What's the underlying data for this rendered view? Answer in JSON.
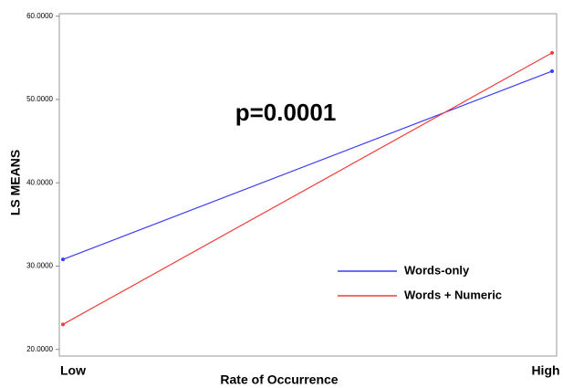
{
  "chart_data": {
    "type": "line",
    "xlabel": "Rate of Occurrence",
    "ylabel": "LS MEANS",
    "annotation": "p=0.0001",
    "categories": [
      "Low",
      "High"
    ],
    "series": [
      {
        "name": "Words-only",
        "color": "#3b3bf5",
        "values": [
          30.8,
          53.4
        ]
      },
      {
        "name": "Words + Numeric",
        "color": "#f03c3c",
        "values": [
          23.0,
          55.6
        ]
      }
    ],
    "ylim": [
      19.2,
      60.3
    ],
    "yticks": [
      {
        "value": 20,
        "label": "20.0000"
      },
      {
        "value": 30,
        "label": "30.0000"
      },
      {
        "value": 40,
        "label": "40.0000"
      },
      {
        "value": 50,
        "label": "50.0000"
      },
      {
        "value": 60,
        "label": "60.0000"
      }
    ],
    "legend": "lower-right"
  }
}
